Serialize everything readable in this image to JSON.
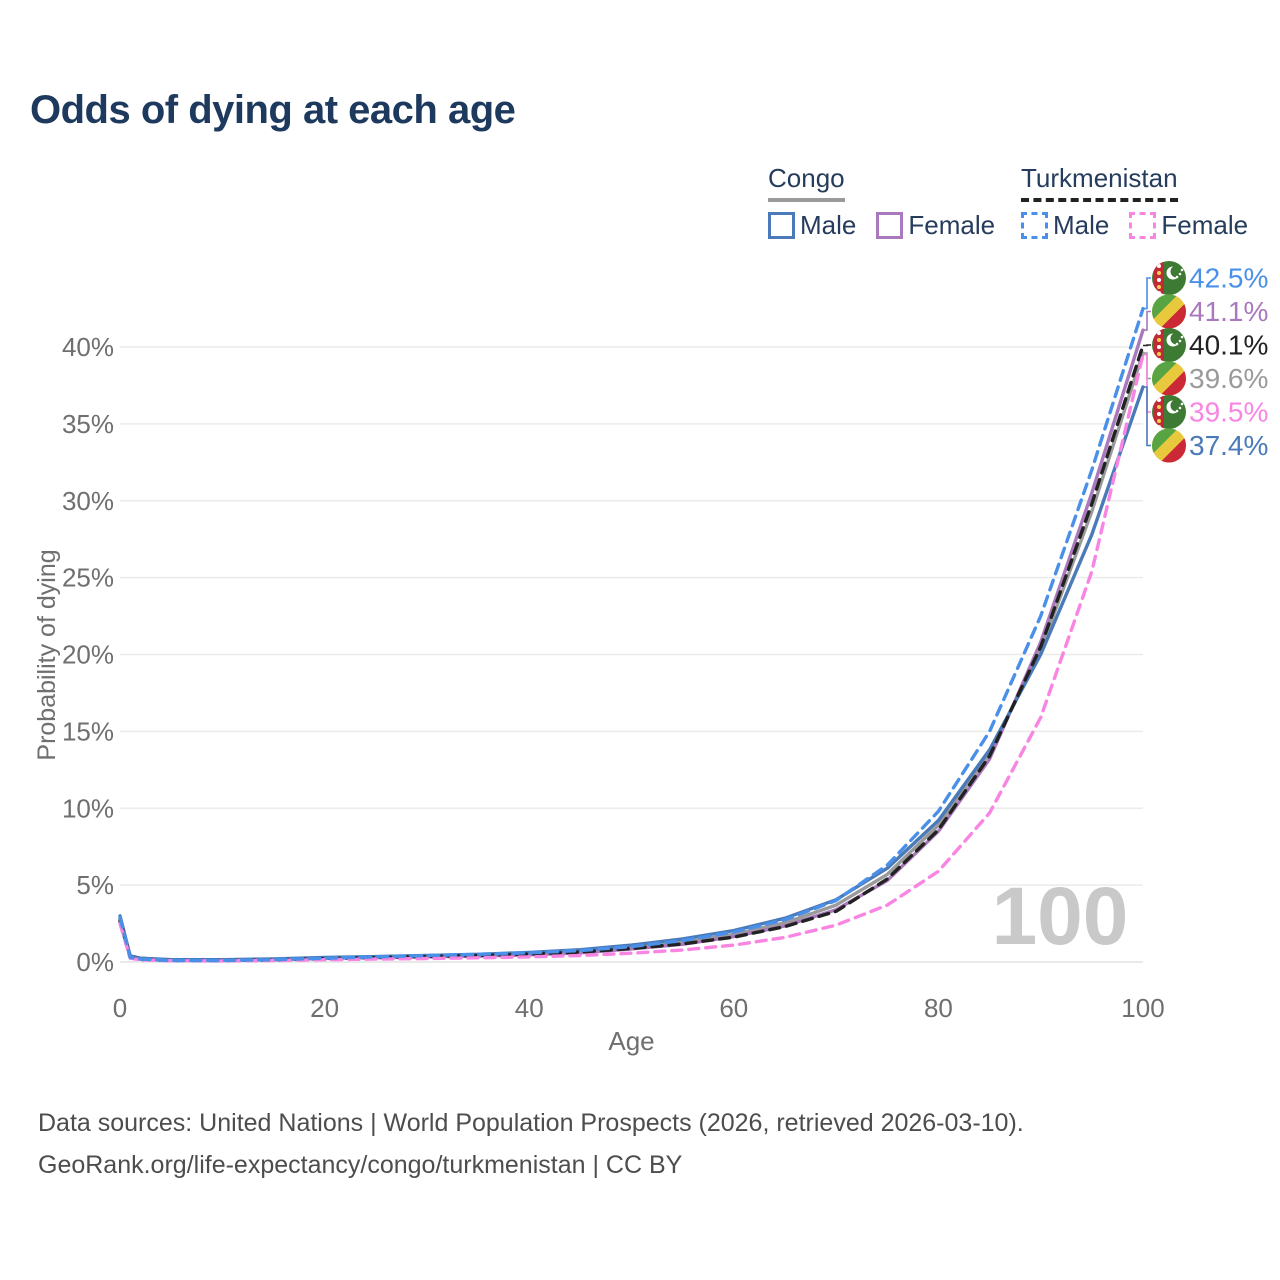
{
  "title": "Odds of dying at each age",
  "colors": {
    "title": "#1d3a5e",
    "axis_text": "#6f6f6f",
    "gridline": "#ebebeb",
    "baseline": "#e2e2e2",
    "watermark": "#c9c9c9",
    "legend_text": "#263c5c",
    "congo_male": "#4a7ab8",
    "congo_female": "#a978bd",
    "congo_country": "#9a9a9a",
    "turkmenistan_male": "#4a90e8",
    "turkmenistan_female": "#f985e3",
    "turkmenistan_country": "#222222"
  },
  "legend": {
    "congo": {
      "name": "Congo",
      "male": "Male",
      "female": "Female"
    },
    "turkmenistan": {
      "name": "Turkmenistan",
      "male": "Male",
      "female": "Female"
    }
  },
  "chart_data": {
    "type": "line",
    "title": "Odds of dying at each age",
    "xlabel": "Age",
    "ylabel": "Probability of dying",
    "xlim": [
      0,
      100
    ],
    "ylim": [
      0,
      44
    ],
    "grid": "horizontal",
    "legend_position": "top-right",
    "x_tick_values": [
      0,
      20,
      40,
      60,
      80,
      100
    ],
    "y_tick_values": [
      0,
      5,
      10,
      15,
      20,
      25,
      30,
      35,
      40
    ],
    "y_tick_labels": [
      "0%",
      "5%",
      "10%",
      "15%",
      "20%",
      "25%",
      "30%",
      "35%",
      "40%"
    ],
    "watermark": "100",
    "x": [
      0,
      1,
      2,
      5,
      10,
      15,
      20,
      25,
      30,
      35,
      40,
      45,
      50,
      55,
      60,
      65,
      70,
      75,
      80,
      85,
      90,
      95,
      100
    ],
    "series": [
      {
        "name": "Turkmenistan Male",
        "flag": "turkmenistan",
        "color": "#4a90e8",
        "dash": true,
        "end_label": "42.5%",
        "values": [
          2.9,
          0.3,
          0.18,
          0.1,
          0.1,
          0.15,
          0.25,
          0.33,
          0.42,
          0.5,
          0.6,
          0.75,
          1.0,
          1.4,
          1.95,
          2.75,
          4.0,
          6.3,
          9.8,
          15.0,
          22.5,
          32.0,
          42.5
        ]
      },
      {
        "name": "Congo Female",
        "flag": "congo",
        "color": "#a978bd",
        "dash": false,
        "end_label": "41.1%",
        "values": [
          2.6,
          0.35,
          0.22,
          0.13,
          0.12,
          0.16,
          0.24,
          0.28,
          0.33,
          0.38,
          0.47,
          0.6,
          0.85,
          1.15,
          1.65,
          2.35,
          3.4,
          5.3,
          8.5,
          13.2,
          20.8,
          30.5,
          41.1
        ]
      },
      {
        "name": "Turkmenistan Both sexes",
        "flag": "turkmenistan",
        "color": "#222222",
        "dash": true,
        "end_label": "40.1%",
        "values": [
          2.7,
          0.28,
          0.16,
          0.09,
          0.09,
          0.13,
          0.22,
          0.29,
          0.36,
          0.43,
          0.52,
          0.65,
          0.88,
          1.18,
          1.62,
          2.3,
          3.3,
          5.4,
          8.6,
          13.4,
          20.5,
          29.8,
          40.1
        ]
      },
      {
        "name": "Congo Both sexes",
        "flag": "congo",
        "color": "#9a9a9a",
        "dash": false,
        "end_label": "39.6%",
        "values": [
          2.8,
          0.38,
          0.24,
          0.14,
          0.13,
          0.18,
          0.27,
          0.31,
          0.36,
          0.42,
          0.52,
          0.66,
          0.92,
          1.28,
          1.8,
          2.55,
          3.7,
          5.7,
          8.9,
          13.6,
          20.3,
          29.3,
          39.6
        ]
      },
      {
        "name": "Turkmenistan Female",
        "flag": "turkmenistan",
        "color": "#f985e3",
        "dash": true,
        "end_label": "39.5%",
        "values": [
          2.5,
          0.25,
          0.14,
          0.08,
          0.07,
          0.1,
          0.15,
          0.19,
          0.23,
          0.27,
          0.33,
          0.42,
          0.57,
          0.78,
          1.1,
          1.6,
          2.4,
          3.7,
          5.9,
          9.7,
          15.9,
          25.4,
          39.5
        ]
      },
      {
        "name": "Congo Male",
        "flag": "congo",
        "color": "#4a7ab8",
        "dash": false,
        "end_label": "37.4%",
        "values": [
          3.0,
          0.4,
          0.25,
          0.15,
          0.15,
          0.2,
          0.3,
          0.35,
          0.42,
          0.5,
          0.62,
          0.8,
          1.1,
          1.5,
          2.05,
          2.85,
          4.05,
          6.1,
          9.2,
          13.8,
          20.0,
          27.8,
          37.4
        ]
      }
    ]
  },
  "footer": {
    "line1": "Data sources: United Nations | World Population Prospects (2026, retrieved 2026-03-10).",
    "line2": "GeoRank.org/life-expectancy/congo/turkmenistan | CC BY"
  }
}
